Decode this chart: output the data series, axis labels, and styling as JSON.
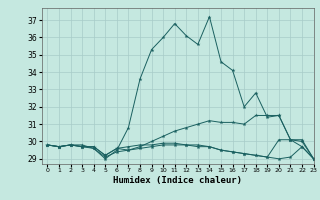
{
  "title": "",
  "xlabel": "Humidex (Indice chaleur)",
  "ylabel": "",
  "bg_color": "#c5e8e0",
  "line_color": "#1a6060",
  "grid_color": "#a8ccc8",
  "xlim": [
    -0.5,
    23
  ],
  "ylim": [
    28.7,
    37.7
  ],
  "yticks": [
    29,
    30,
    31,
    32,
    33,
    34,
    35,
    36,
    37
  ],
  "xticks": [
    0,
    1,
    2,
    3,
    4,
    5,
    6,
    7,
    8,
    9,
    10,
    11,
    12,
    13,
    14,
    15,
    16,
    17,
    18,
    19,
    20,
    21,
    22,
    23
  ],
  "series": [
    {
      "x": [
        0,
        1,
        2,
        3,
        4,
        5,
        6,
        7,
        8,
        9,
        10,
        11,
        12,
        13,
        14,
        15,
        16,
        17,
        18,
        19,
        20,
        21,
        22,
        23
      ],
      "y": [
        29.8,
        29.7,
        29.8,
        29.8,
        29.6,
        29.0,
        29.5,
        30.8,
        33.6,
        35.3,
        36.0,
        36.8,
        36.1,
        35.6,
        37.2,
        34.6,
        34.1,
        32.0,
        32.8,
        31.4,
        31.5,
        30.1,
        30.1,
        29.0
      ]
    },
    {
      "x": [
        0,
        1,
        2,
        3,
        4,
        5,
        6,
        7,
        8,
        9,
        10,
        11,
        12,
        13,
        14,
        15,
        16,
        17,
        18,
        19,
        20,
        21,
        22,
        23
      ],
      "y": [
        29.8,
        29.7,
        29.8,
        29.7,
        29.6,
        29.1,
        29.4,
        29.5,
        29.7,
        30.0,
        30.3,
        30.6,
        30.8,
        31.0,
        31.2,
        31.1,
        31.1,
        31.0,
        31.5,
        31.5,
        31.5,
        30.1,
        29.7,
        29.0
      ]
    },
    {
      "x": [
        0,
        1,
        2,
        3,
        4,
        5,
        6,
        7,
        8,
        9,
        10,
        11,
        12,
        13,
        14,
        15,
        16,
        17,
        18,
        19,
        20,
        21,
        22,
        23
      ],
      "y": [
        29.8,
        29.7,
        29.8,
        29.7,
        29.7,
        29.2,
        29.6,
        29.5,
        29.6,
        29.7,
        29.8,
        29.8,
        29.8,
        29.7,
        29.7,
        29.5,
        29.4,
        29.3,
        29.2,
        29.1,
        29.0,
        29.1,
        29.7,
        29.0
      ]
    },
    {
      "x": [
        0,
        1,
        2,
        3,
        4,
        5,
        6,
        7,
        8,
        9,
        10,
        11,
        12,
        13,
        14,
        15,
        16,
        17,
        18,
        19,
        20,
        21,
        22,
        23
      ],
      "y": [
        29.8,
        29.7,
        29.8,
        29.7,
        29.7,
        29.2,
        29.6,
        29.7,
        29.8,
        29.8,
        29.9,
        29.9,
        29.8,
        29.8,
        29.7,
        29.5,
        29.4,
        29.3,
        29.2,
        29.1,
        30.1,
        30.1,
        30.0,
        29.0
      ]
    }
  ]
}
